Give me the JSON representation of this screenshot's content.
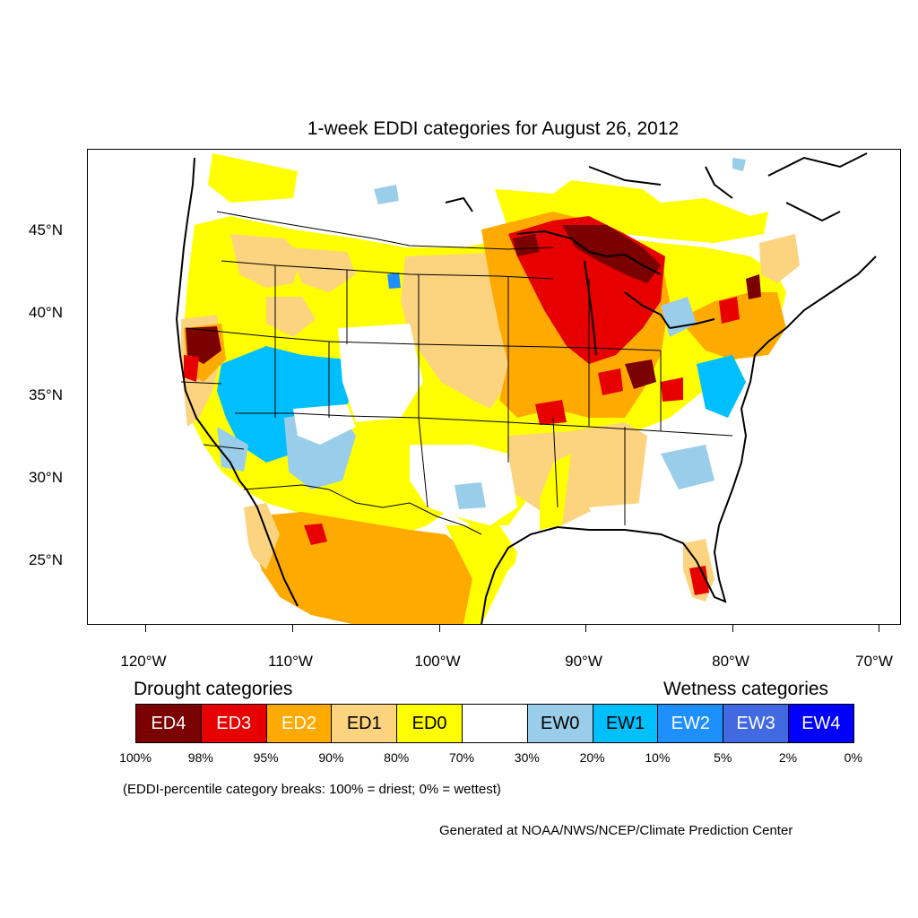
{
  "title": "1-week EDDI categories for August 26, 2012",
  "axes": {
    "lat_labels": [
      "45°N",
      "40°N",
      "35°N",
      "30°N",
      "25°N"
    ],
    "lon_labels": [
      "120°W",
      "110°W",
      "100°W",
      "90°W",
      "80°W",
      "70°W"
    ]
  },
  "legend": {
    "drought_heading": "Drought categories",
    "wetness_heading": "Wetness categories",
    "categories": [
      {
        "label": "ED4",
        "color": "#7b0000",
        "text_color": "#ffffff"
      },
      {
        "label": "ED3",
        "color": "#e60000",
        "text_color": "#ffffff"
      },
      {
        "label": "ED2",
        "color": "#ffaa00",
        "text_color": "#ffffff"
      },
      {
        "label": "ED1",
        "color": "#fcd37f",
        "text_color": "#000000"
      },
      {
        "label": "ED0",
        "color": "#ffff00",
        "text_color": "#000000"
      },
      {
        "label": "",
        "color": "#ffffff",
        "text_color": "#000000"
      },
      {
        "label": "EW0",
        "color": "#9acde9",
        "text_color": "#000000"
      },
      {
        "label": "EW1",
        "color": "#00bfff",
        "text_color": "#000000"
      },
      {
        "label": "EW2",
        "color": "#1e8fff",
        "text_color": "#ffffff"
      },
      {
        "label": "EW3",
        "color": "#4169e1",
        "text_color": "#ffffff"
      },
      {
        "label": "EW4",
        "color": "#0000ff",
        "text_color": "#ffffff"
      }
    ],
    "breaks": [
      "100%",
      "98%",
      "95%",
      "90%",
      "80%",
      "70%",
      "30%",
      "20%",
      "10%",
      "5%",
      "2%",
      "0%"
    ]
  },
  "note": "(EDDI-percentile category breaks: 100% = driest; 0% = wettest)",
  "credit": "Generated at NOAA/NWS/NCEP/Climate Prediction Center"
}
